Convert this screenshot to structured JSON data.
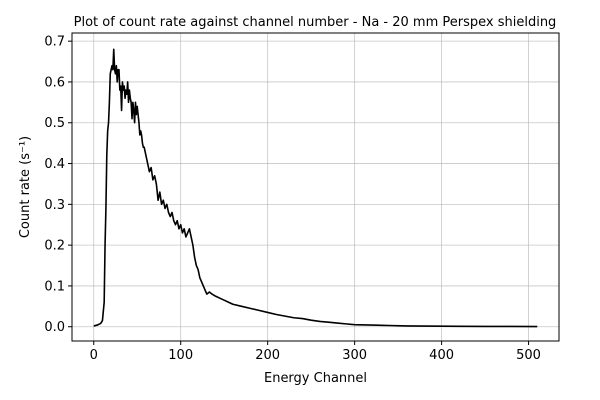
{
  "chart_data": {
    "type": "line",
    "title": "Plot of count rate against channel number - Na - 20 mm Perspex shielding",
    "xlabel": "Energy Channel",
    "ylabel": "Count rate (s⁻¹)",
    "xlim": [
      -25,
      535
    ],
    "ylim": [
      -0.035,
      0.72
    ],
    "xticks": [
      0,
      100,
      200,
      300,
      400,
      500
    ],
    "yticks": [
      0.0,
      0.1,
      0.2,
      0.3,
      0.4,
      0.5,
      0.6,
      0.7
    ],
    "xtick_labels": [
      "0",
      "100",
      "200",
      "300",
      "400",
      "500"
    ],
    "ytick_labels": [
      "0.0",
      "0.1",
      "0.2",
      "0.3",
      "0.4",
      "0.5",
      "0.6",
      "0.7"
    ],
    "grid": true,
    "line_color": "#000000",
    "series": [
      {
        "x": [
          0,
          4,
          8,
          10,
          12,
          13,
          14,
          15,
          16,
          17,
          18,
          19,
          20,
          21,
          22,
          23,
          24,
          25,
          26,
          27,
          28,
          29,
          30,
          31,
          32,
          33,
          34,
          35,
          36,
          37,
          38,
          39,
          40,
          41,
          42,
          43,
          44,
          45,
          46,
          47,
          48,
          49,
          50,
          51,
          52,
          53,
          54,
          55,
          56,
          57,
          58,
          59,
          60,
          62,
          64,
          66,
          68,
          70,
          72,
          74,
          76,
          78,
          80,
          82,
          84,
          86,
          88,
          90,
          92,
          94,
          96,
          98,
          100,
          102,
          104,
          106,
          108,
          110,
          112,
          114,
          116,
          118,
          120,
          122,
          124,
          126,
          128,
          130,
          133,
          136,
          140,
          145,
          150,
          155,
          160,
          170,
          180,
          190,
          200,
          210,
          220,
          230,
          240,
          250,
          260,
          270,
          280,
          290,
          300,
          320,
          340,
          360,
          380,
          400,
          420,
          450,
          480,
          510
        ],
        "y": [
          0.002,
          0.004,
          0.008,
          0.015,
          0.06,
          0.2,
          0.29,
          0.42,
          0.48,
          0.5,
          0.55,
          0.62,
          0.63,
          0.64,
          0.63,
          0.68,
          0.63,
          0.62,
          0.64,
          0.6,
          0.63,
          0.63,
          0.58,
          0.59,
          0.53,
          0.6,
          0.58,
          0.59,
          0.56,
          0.58,
          0.57,
          0.6,
          0.55,
          0.58,
          0.56,
          0.55,
          0.51,
          0.55,
          0.53,
          0.5,
          0.55,
          0.52,
          0.54,
          0.52,
          0.5,
          0.47,
          0.48,
          0.47,
          0.45,
          0.44,
          0.44,
          0.43,
          0.42,
          0.4,
          0.38,
          0.39,
          0.36,
          0.37,
          0.35,
          0.31,
          0.33,
          0.3,
          0.31,
          0.29,
          0.3,
          0.28,
          0.27,
          0.28,
          0.26,
          0.25,
          0.26,
          0.24,
          0.25,
          0.23,
          0.24,
          0.22,
          0.23,
          0.24,
          0.22,
          0.2,
          0.17,
          0.15,
          0.14,
          0.12,
          0.11,
          0.1,
          0.09,
          0.08,
          0.085,
          0.08,
          0.075,
          0.07,
          0.065,
          0.06,
          0.055,
          0.05,
          0.045,
          0.04,
          0.035,
          0.03,
          0.026,
          0.022,
          0.02,
          0.016,
          0.013,
          0.011,
          0.009,
          0.007,
          0.005,
          0.004,
          0.003,
          0.002,
          0.0015,
          0.0012,
          0.001,
          0.0008,
          0.0006,
          0.0005
        ]
      }
    ]
  }
}
